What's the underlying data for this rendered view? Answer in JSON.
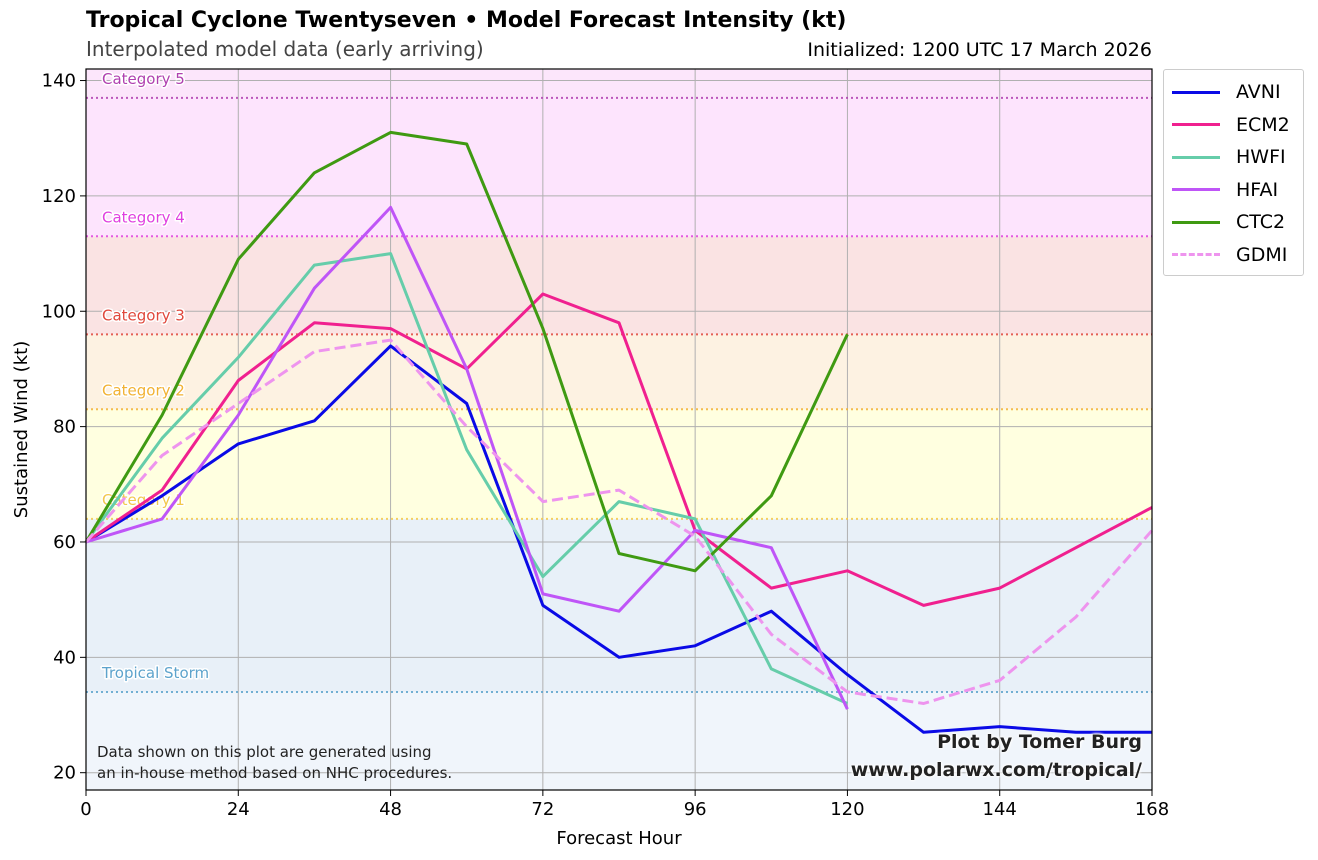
{
  "header": {
    "title": "Tropical Cyclone Twentyseven • Model Forecast Intensity (kt)",
    "subtitle": "Interpolated model data (early arriving)",
    "initialized": "Initialized: 1200 UTC 17 March 2026"
  },
  "footer": {
    "note_line1": "Data shown on this plot are generated using",
    "note_line2": "an in-house method based on NHC procedures.",
    "credit_line1": "Plot by Tomer Burg",
    "credit_line2": "www.polarwx.com/tropical/"
  },
  "chart_data": {
    "type": "line",
    "xlabel": "Forecast Hour",
    "ylabel": "Sustained Wind (kt)",
    "xlim": [
      0,
      168
    ],
    "ylim": [
      17,
      142
    ],
    "xticks": [
      0,
      24,
      48,
      72,
      96,
      120,
      144,
      168
    ],
    "yticks": [
      20,
      40,
      60,
      80,
      100,
      120,
      140
    ],
    "grid": true,
    "legend_position": "outside-top-right",
    "categories": [
      {
        "name": "Tropical Storm",
        "threshold": 34,
        "color": "#5da3cc",
        "band_color": "#e8f0f8"
      },
      {
        "name": "Category 1",
        "threshold": 64,
        "color": "#f2c84b",
        "band_color": "#ffffe0"
      },
      {
        "name": "Category 2",
        "threshold": 83,
        "color": "#f2b233",
        "band_color": "#fdf2e2"
      },
      {
        "name": "Category 3",
        "threshold": 96,
        "color": "#e0483c",
        "band_color": "#fae3e3"
      },
      {
        "name": "Category 4",
        "threshold": 113,
        "color": "#e040e0",
        "band_color": "#fde4fd"
      },
      {
        "name": "Category 5",
        "threshold": 137,
        "color": "#b040b0",
        "band_color": "#fce6fb"
      }
    ],
    "below_ts_band_color": "#f0f5fb",
    "series": [
      {
        "name": "AVNI",
        "color": "#0a0ae6",
        "dash": false,
        "x": [
          0,
          12,
          24,
          36,
          48,
          60,
          72,
          84,
          96,
          108,
          120,
          132,
          144,
          156,
          168
        ],
        "y": [
          60,
          68,
          77,
          81,
          94,
          84,
          49,
          40,
          42,
          48,
          37,
          27,
          28,
          27,
          27
        ]
      },
      {
        "name": "ECM2",
        "color": "#f0208f",
        "dash": false,
        "x": [
          0,
          12,
          24,
          36,
          48,
          60,
          72,
          84,
          96,
          108,
          120,
          132,
          144,
          156,
          168
        ],
        "y": [
          60,
          69,
          88,
          98,
          97,
          90,
          103,
          98,
          62,
          52,
          55,
          49,
          52,
          59,
          66
        ]
      },
      {
        "name": "HWFI",
        "color": "#66cdaa",
        "dash": false,
        "x": [
          0,
          12,
          24,
          36,
          48,
          60,
          72,
          84,
          96,
          108,
          120
        ],
        "y": [
          60,
          78,
          92,
          108,
          110,
          76,
          54,
          67,
          64,
          38,
          32
        ]
      },
      {
        "name": "HFAI",
        "color": "#bf55f7",
        "dash": false,
        "x": [
          0,
          12,
          24,
          36,
          48,
          60,
          72,
          84,
          96,
          108,
          120
        ],
        "y": [
          60,
          64,
          82,
          104,
          118,
          90,
          51,
          48,
          62,
          59,
          31
        ]
      },
      {
        "name": "CTC2",
        "color": "#3f9a12",
        "dash": false,
        "x": [
          0,
          12,
          24,
          36,
          48,
          60,
          72,
          84,
          96,
          108,
          120
        ],
        "y": [
          60,
          82,
          109,
          124,
          131,
          129,
          97,
          58,
          55,
          68,
          96
        ]
      },
      {
        "name": "GDMI",
        "color": "#ee94ee",
        "dash": true,
        "x": [
          0,
          12,
          24,
          36,
          48,
          60,
          72,
          84,
          96,
          108,
          120,
          132,
          144,
          156,
          168
        ],
        "y": [
          60,
          75,
          84,
          93,
          95,
          80,
          67,
          69,
          61,
          44,
          34,
          32,
          36,
          47,
          62
        ]
      }
    ]
  }
}
